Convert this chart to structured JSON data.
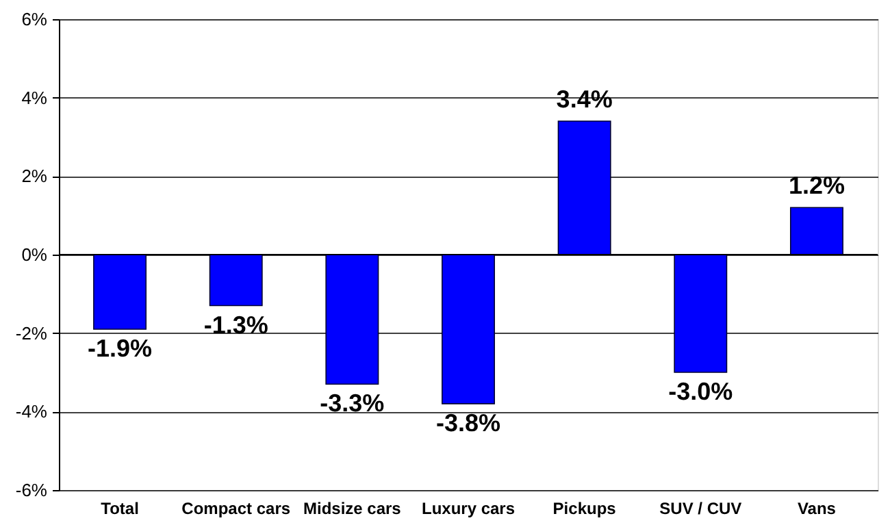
{
  "chart_data": {
    "type": "bar",
    "categories": [
      "Total",
      "Compact cars",
      "Midsize cars",
      "Luxury cars",
      "Pickups",
      "SUV / CUV",
      "Vans"
    ],
    "values": [
      -1.9,
      -1.3,
      -3.3,
      -3.8,
      3.4,
      -3.0,
      1.2
    ],
    "value_labels": [
      "-1.9%",
      "-1.3%",
      "-3.3%",
      "-3.8%",
      "3.4%",
      "-3.0%",
      "1.2%"
    ],
    "color": "#0000ff",
    "ylim": [
      -6,
      6
    ],
    "yticks": [
      {
        "value": -6,
        "label": "-6%"
      },
      {
        "value": -4,
        "label": "-4%"
      },
      {
        "value": -2,
        "label": "-2%"
      },
      {
        "value": 0,
        "label": "0%"
      },
      {
        "value": 2,
        "label": "2%"
      },
      {
        "value": 4,
        "label": "4%"
      },
      {
        "value": 6,
        "label": "6%"
      }
    ],
    "grid": "y"
  }
}
